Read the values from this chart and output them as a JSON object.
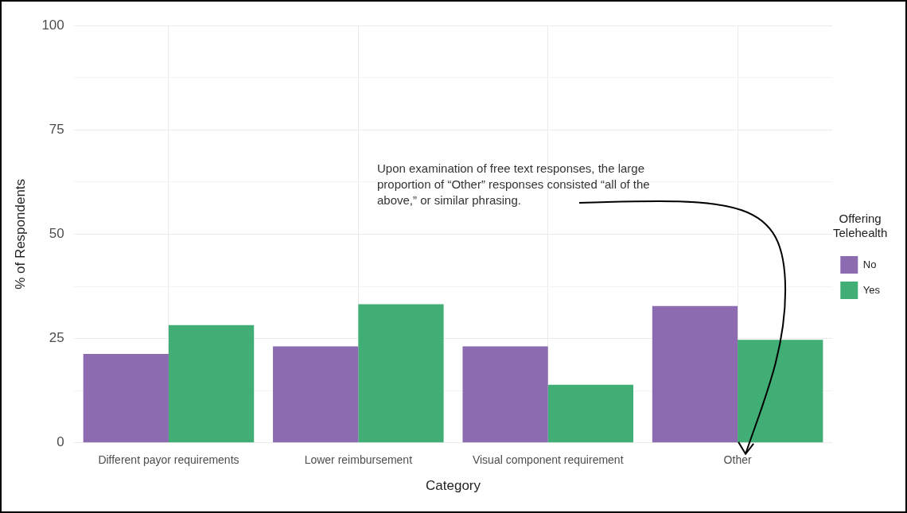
{
  "chart_data": {
    "type": "bar",
    "xlabel": "Category",
    "ylabel": "% of Respondents",
    "legend_title": "Offering Telehealth",
    "categories": [
      "Different payor requirements",
      "Lower reimbursement",
      "Visual component requirement",
      "Other"
    ],
    "series": [
      {
        "name": "No",
        "color": "#8c6bb1",
        "values": [
          21.3,
          23.1,
          23.1,
          32.8
        ]
      },
      {
        "name": "Yes",
        "color": "#41ae76",
        "values": [
          28.2,
          33.2,
          13.9,
          24.7
        ]
      }
    ],
    "ylim": [
      0,
      100
    ],
    "yticks": [
      0,
      {
        "value": 12.5,
        "label": null
      },
      25,
      {
        "value": 37.5,
        "label": null
      },
      50,
      {
        "value": 62.5,
        "label": null
      },
      75,
      {
        "value": 87.5,
        "label": null
      },
      100
    ],
    "grid": true,
    "legend": "right",
    "annotations": [
      "Upon examination of free text responses, the large proportion of “Other” responses consisted “all of the above,” or similar phrasing."
    ]
  }
}
